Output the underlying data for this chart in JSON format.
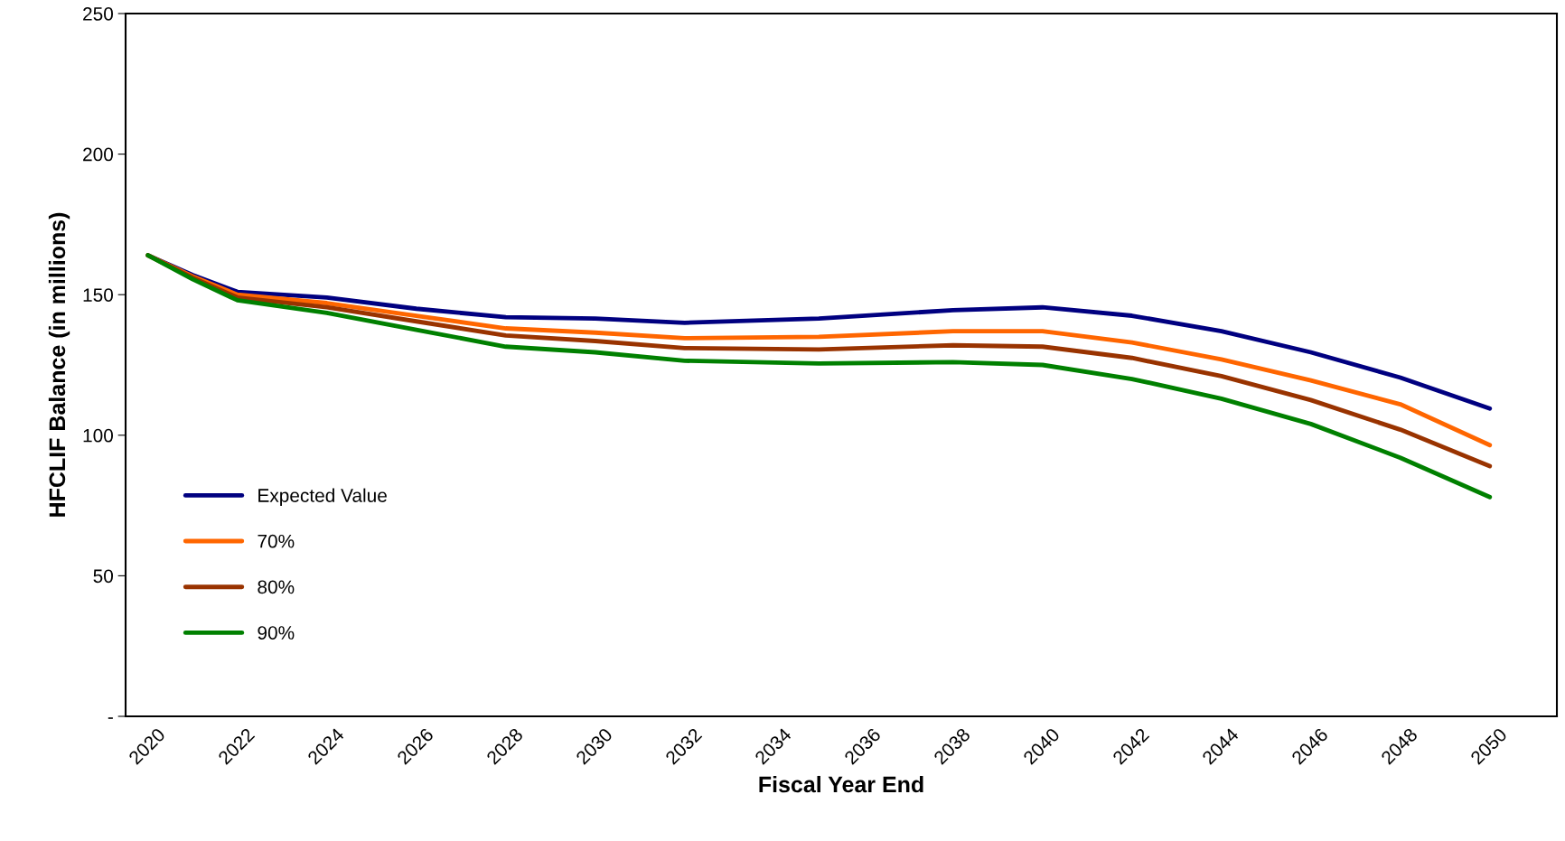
{
  "chart_data": {
    "type": "line",
    "xlabel": "Fiscal Year End",
    "ylabel": "HFCLIF Balance (in millions)",
    "x": [
      2020,
      2021,
      2022,
      2024,
      2026,
      2028,
      2030,
      2032,
      2035,
      2038,
      2040,
      2042,
      2044,
      2046,
      2048,
      2050
    ],
    "series": [
      {
        "name": "Expected Value",
        "color": "#000080",
        "values": [
          164,
          157,
          151,
          149,
          145,
          142,
          141.5,
          140,
          141.5,
          144.5,
          145.5,
          142.5,
          137,
          129.5,
          120.5,
          109.5
        ]
      },
      {
        "name": "70%",
        "color": "#ff6600",
        "values": [
          164,
          156.5,
          150,
          147,
          142.5,
          138,
          136.5,
          134.5,
          135,
          137,
          137,
          133,
          127,
          119.5,
          111,
          96.5
        ]
      },
      {
        "name": "80%",
        "color": "#993300",
        "values": [
          164,
          156,
          149,
          145.5,
          140.5,
          135.5,
          133.5,
          131,
          130.5,
          132,
          131.5,
          127.5,
          121,
          112.5,
          102,
          89
        ]
      },
      {
        "name": "90%",
        "color": "#008000",
        "values": [
          164,
          155.5,
          148,
          143.5,
          137.5,
          131.5,
          129.5,
          126.5,
          125.5,
          126,
          125,
          120,
          113,
          104,
          92,
          78
        ]
      }
    ],
    "xlim": [
      2019.5,
      2051.5
    ],
    "xticks": [
      2020,
      2022,
      2024,
      2026,
      2028,
      2030,
      2032,
      2034,
      2036,
      2038,
      2040,
      2042,
      2044,
      2046,
      2048,
      2050
    ],
    "ylim": [
      0,
      250
    ],
    "yticks": [
      {
        "value": 0,
        "label": "-"
      },
      50,
      100,
      150,
      200,
      250
    ],
    "grid": false,
    "legend": "bottom left",
    "marker": "none",
    "line_style": "solid"
  }
}
